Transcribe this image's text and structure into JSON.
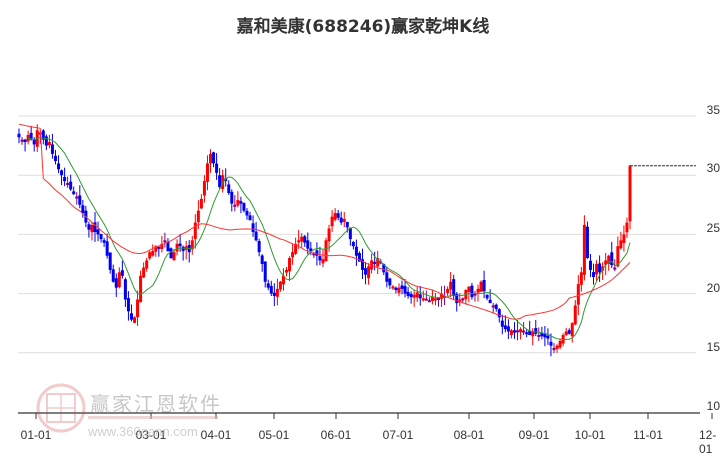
{
  "title": "嘉和美康(688246)赢家乾坤K线",
  "watermark": {
    "brand": "赢家江恩软件",
    "url": "www.360gann.com",
    "seal": [
      "江",
      "赢",
      "恩",
      "家"
    ]
  },
  "colors": {
    "up": "#ff0000",
    "down": "#0000ee",
    "neutral": "#800080",
    "ma_short": "#339933",
    "ma_long": "#ff3333",
    "grid": "#dddddd",
    "axis": "#333333"
  },
  "chart_data": {
    "type": "candlestick",
    "title": "嘉和美康(688246)赢家乾坤K线",
    "xlabel": "",
    "ylabel": "",
    "ylim": [
      10,
      36
    ],
    "yticks": [
      10,
      15,
      20,
      25,
      30,
      35
    ],
    "y_axis_position": "right",
    "grid": true,
    "x_tick_labels": [
      "01-01",
      "03-01",
      "04-01",
      "05-01",
      "06-01",
      "07-01",
      "08-01",
      "09-01",
      "10-01",
      "11-01",
      "12-01"
    ],
    "last_price_line": 30.8,
    "series": [
      {
        "name": "short_ma",
        "color": "green"
      },
      {
        "name": "long_ma",
        "color": "red"
      }
    ],
    "closes": [
      33.2,
      33.0,
      32.8,
      33.4,
      33.0,
      32.6,
      33.8,
      33.5,
      33.0,
      32.5,
      32.8,
      31.8,
      31.2,
      30.5,
      30.0,
      29.5,
      29.3,
      28.8,
      28.4,
      28.2,
      27.5,
      26.8,
      26.0,
      25.4,
      25.8,
      25.2,
      25.0,
      24.6,
      24.3,
      23.2,
      22.0,
      21.0,
      20.5,
      21.8,
      21.5,
      19.5,
      18.5,
      17.8,
      18.0,
      19.5,
      21.5,
      22.2,
      22.8,
      23.5,
      23.6,
      24.0,
      23.8,
      24.2,
      24.5,
      23.6,
      23.0,
      23.5,
      24.2,
      24.0,
      23.6,
      24.0,
      23.5,
      24.5,
      26.0,
      27.0,
      28.0,
      29.5,
      31.0,
      31.8,
      31.0,
      30.2,
      29.0,
      30.0,
      29.5,
      28.5,
      27.6,
      27.5,
      27.9,
      27.6,
      27.0,
      26.6,
      26.2,
      25.2,
      24.5,
      23.5,
      22.5,
      21.0,
      20.5,
      20.0,
      19.8,
      20.4,
      21.0,
      21.5,
      22.0,
      23.0,
      23.5,
      24.2,
      24.5,
      24.8,
      24.3,
      23.8,
      23.6,
      23.4,
      23.2,
      22.8,
      22.9,
      24.5,
      25.5,
      26.5,
      26.8,
      26.4,
      26.0,
      26.3,
      25.6,
      24.6,
      24.0,
      23.2,
      22.7,
      22.0,
      21.6,
      22.3,
      22.8,
      22.5,
      23.0,
      22.6,
      21.8,
      21.0,
      20.7,
      20.6,
      20.3,
      20.5,
      20.4,
      20.0,
      19.8,
      19.7,
      19.9,
      20.1,
      19.6,
      19.6,
      19.5,
      19.4,
      19.7,
      19.6,
      19.6,
      20.0,
      19.8,
      20.4,
      21.0,
      19.8,
      19.2,
      19.5,
      19.6,
      20.3,
      20.6,
      19.7,
      20.0,
      20.4,
      21.0,
      20.2,
      19.6,
      19.2,
      19.0,
      18.7,
      18.0,
      17.2,
      17.0,
      16.8,
      16.9,
      16.7,
      16.9,
      17.0,
      16.8,
      16.6,
      16.5,
      16.8,
      16.6,
      16.5,
      16.4,
      16.3,
      16.2,
      15.6,
      15.4,
      15.6,
      16.0,
      16.5,
      16.8,
      16.6,
      17.5,
      19.0,
      20.8,
      21.8,
      25.8,
      23.0,
      22.0,
      21.4,
      22.5,
      21.8,
      22.3,
      22.8,
      23.2,
      22.4,
      22.2,
      24.0,
      24.5,
      25.0,
      26.0,
      30.8
    ]
  }
}
